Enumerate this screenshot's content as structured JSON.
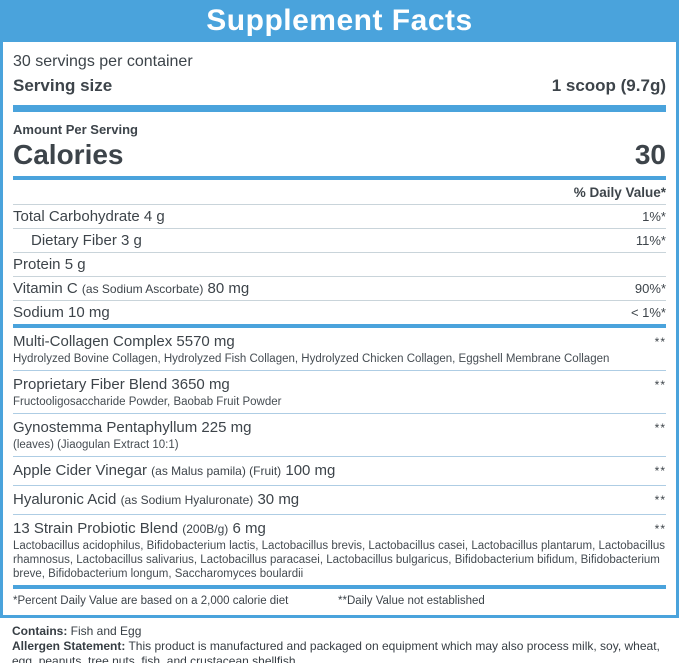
{
  "title": "Supplement Facts",
  "serving": {
    "servings_per_container": "30 servings per container",
    "serving_size_label": "Serving size",
    "serving_size_value": "1 scoop (9.7g)"
  },
  "calories": {
    "amount_per_serving_label": "Amount Per Serving",
    "label": "Calories",
    "value": "30"
  },
  "daily_value_header": "% Daily Value*",
  "nutrients": [
    {
      "name": "Total Carbohydrate 4 g",
      "dv": "1%*"
    },
    {
      "name": "Dietary Fiber 3 g",
      "dv": "11%*"
    },
    {
      "name": "Protein 5 g",
      "dv": ""
    },
    {
      "name": "Vitamin C ",
      "paren": "(as Sodium Ascorbate)",
      "suffix": " 80 mg",
      "dv": "90%*"
    },
    {
      "name": "Sodium 10 mg",
      "dv": "< 1%*"
    }
  ],
  "blends": [
    {
      "name": "Multi-Collagen Complex 5570 mg",
      "dv": "**",
      "sub": "Hydrolyzed Bovine Collagen, Hydrolyzed Fish Collagen, Hydrolyzed Chicken Collagen, Eggshell Membrane Collagen"
    },
    {
      "name": "Proprietary Fiber Blend 3650 mg",
      "dv": "**",
      "sub": "Fructooligosaccharide Powder, Baobab Fruit Powder"
    },
    {
      "name": "Gynostemma Pentaphyllum 225 mg",
      "dv": "**",
      "sub": "(leaves) (Jiaogulan Extract 10:1)"
    },
    {
      "name": "Apple Cider Vinegar ",
      "paren": "(as Malus pamila) (Fruit)",
      "suffix": " 100 mg",
      "dv": "**"
    },
    {
      "name": "Hyaluronic Acid ",
      "paren": "(as Sodium Hyaluronate)",
      "suffix": " 30 mg",
      "dv": "**"
    },
    {
      "name": "13 Strain Probiotic Blend ",
      "paren": "(200B/g)",
      "suffix": " 6 mg",
      "dv": "**",
      "sub": "Lactobacillus acidophilus, Bifidobacterium lactis, Lactobacillus brevis, Lactobacillus casei, Lactobacillus plantarum, Lactobacillus rhamnosus, Lactobacillus salivarius, Lactobacillus paracasei, Lactobacillus bulgaricus, Bifidobacterium bifidum, Bifidobacterium breve, Bifidobacterium longum, Saccharomyces boulardii"
    }
  ],
  "footnotes": {
    "daily_value_basis": "*Percent Daily Value are based on a 2,000 calorie diet",
    "not_established": "**Daily Value not established"
  },
  "allergen": {
    "contains_label": "Contains:",
    "contains_value": " Fish and Egg",
    "statement_label": "Allergen Statement:",
    "statement_value": " This product is manufactured and packaged on equipment which may also process milk, soy, wheat, egg, peanuts, tree nuts, fish, and crustacean shellfish."
  },
  "colors": {
    "accent_blue": "#4aa3dc",
    "divider_gray": "#c9d4da",
    "divider_blue": "#aecde4",
    "text_dark": "#3d444a"
  }
}
